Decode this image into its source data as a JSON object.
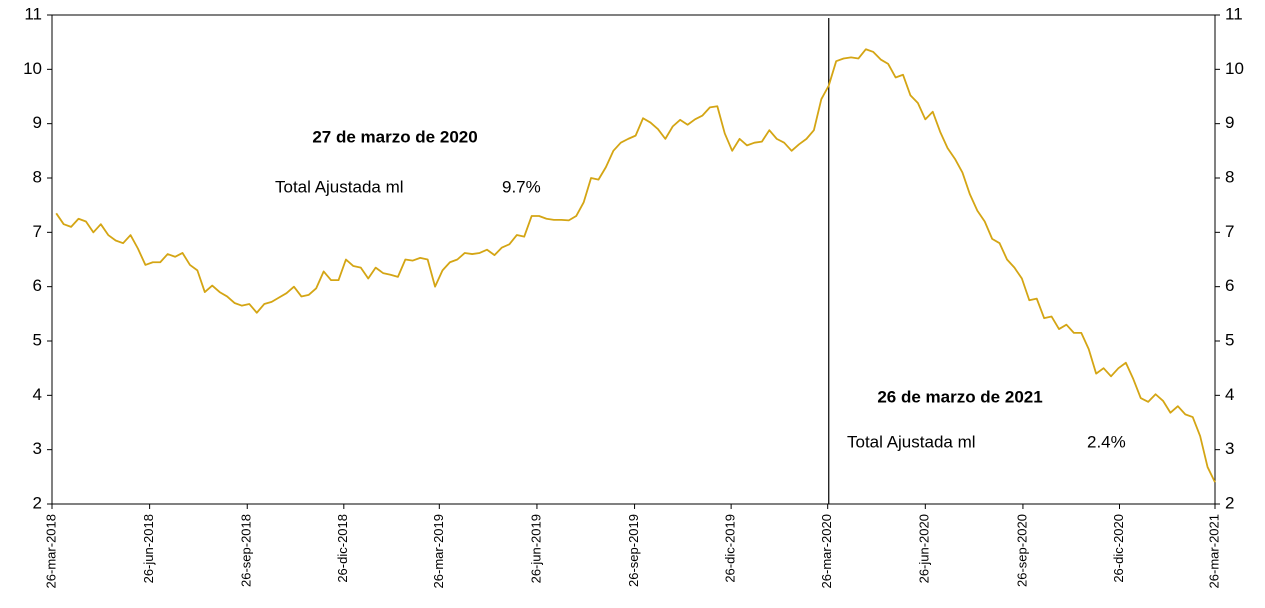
{
  "chart_data": {
    "type": "line",
    "x": [
      "2018-03-30",
      "2018-04-06",
      "2018-04-13",
      "2018-04-20",
      "2018-04-27",
      "2018-05-04",
      "2018-05-11",
      "2018-05-18",
      "2018-05-25",
      "2018-06-01",
      "2018-06-08",
      "2018-06-15",
      "2018-06-22",
      "2018-06-29",
      "2018-07-06",
      "2018-07-13",
      "2018-07-20",
      "2018-07-27",
      "2018-08-03",
      "2018-08-10",
      "2018-08-17",
      "2018-08-24",
      "2018-08-31",
      "2018-09-07",
      "2018-09-14",
      "2018-09-21",
      "2018-09-28",
      "2018-10-05",
      "2018-10-12",
      "2018-10-19",
      "2018-10-26",
      "2018-11-02",
      "2018-11-09",
      "2018-11-16",
      "2018-11-23",
      "2018-11-30",
      "2018-12-07",
      "2018-12-14",
      "2018-12-21",
      "2018-12-28",
      "2019-01-04",
      "2019-01-11",
      "2019-01-18",
      "2019-01-25",
      "2019-02-01",
      "2019-02-08",
      "2019-02-15",
      "2019-02-22",
      "2019-03-01",
      "2019-03-08",
      "2019-03-15",
      "2019-03-22",
      "2019-03-29",
      "2019-04-05",
      "2019-04-12",
      "2019-04-19",
      "2019-04-26",
      "2019-05-03",
      "2019-05-10",
      "2019-05-17",
      "2019-05-24",
      "2019-05-31",
      "2019-06-07",
      "2019-06-14",
      "2019-06-21",
      "2019-06-28",
      "2019-07-05",
      "2019-07-12",
      "2019-07-19",
      "2019-07-26",
      "2019-08-02",
      "2019-08-09",
      "2019-08-16",
      "2019-08-23",
      "2019-08-30",
      "2019-09-06",
      "2019-09-13",
      "2019-09-20",
      "2019-09-27",
      "2019-10-04",
      "2019-10-11",
      "2019-10-18",
      "2019-10-25",
      "2019-11-01",
      "2019-11-08",
      "2019-11-15",
      "2019-11-22",
      "2019-11-29",
      "2019-12-06",
      "2019-12-13",
      "2019-12-20",
      "2019-12-27",
      "2020-01-03",
      "2020-01-10",
      "2020-01-17",
      "2020-01-24",
      "2020-01-31",
      "2020-02-07",
      "2020-02-14",
      "2020-02-21",
      "2020-02-28",
      "2020-03-06",
      "2020-03-13",
      "2020-03-20",
      "2020-03-27",
      "2020-04-03",
      "2020-04-10",
      "2020-04-17",
      "2020-04-24",
      "2020-05-01",
      "2020-05-08",
      "2020-05-15",
      "2020-05-22",
      "2020-05-29",
      "2020-06-05",
      "2020-06-12",
      "2020-06-19",
      "2020-06-26",
      "2020-07-03",
      "2020-07-10",
      "2020-07-17",
      "2020-07-24",
      "2020-07-31",
      "2020-08-07",
      "2020-08-14",
      "2020-08-21",
      "2020-08-28",
      "2020-09-04",
      "2020-09-11",
      "2020-09-18",
      "2020-09-25",
      "2020-10-02",
      "2020-10-09",
      "2020-10-16",
      "2020-10-23",
      "2020-10-30",
      "2020-11-06",
      "2020-11-13",
      "2020-11-20",
      "2020-11-27",
      "2020-12-04",
      "2020-12-11",
      "2020-12-18",
      "2020-12-25",
      "2021-01-01",
      "2021-01-08",
      "2021-01-15",
      "2021-01-22",
      "2021-01-29",
      "2021-02-05",
      "2021-02-12",
      "2021-02-19",
      "2021-02-26",
      "2021-03-05",
      "2021-03-12",
      "2021-03-19",
      "2021-03-26"
    ],
    "series": [
      {
        "name": "Total Ajustada ml",
        "color": "#d4a514",
        "values": [
          7.35,
          7.15,
          7.1,
          7.25,
          7.2,
          7.0,
          7.15,
          6.95,
          6.85,
          6.8,
          6.95,
          6.7,
          6.4,
          6.45,
          6.45,
          6.6,
          6.55,
          6.62,
          6.4,
          6.3,
          5.9,
          6.02,
          5.9,
          5.82,
          5.7,
          5.65,
          5.68,
          5.52,
          5.68,
          5.72,
          5.8,
          5.88,
          6.0,
          5.82,
          5.85,
          5.97,
          6.28,
          6.12,
          6.12,
          6.5,
          6.38,
          6.35,
          6.15,
          6.35,
          6.25,
          6.22,
          6.18,
          6.5,
          6.48,
          6.53,
          6.5,
          6.0,
          6.3,
          6.45,
          6.5,
          6.62,
          6.6,
          6.62,
          6.68,
          6.58,
          6.72,
          6.78,
          6.95,
          6.92,
          7.3,
          7.3,
          7.25,
          7.23,
          7.23,
          7.22,
          7.3,
          7.55,
          8.0,
          7.97,
          8.2,
          8.5,
          8.65,
          8.72,
          8.78,
          9.1,
          9.02,
          8.9,
          8.72,
          8.95,
          9.07,
          8.98,
          9.08,
          9.15,
          9.3,
          9.32,
          8.82,
          8.5,
          8.72,
          8.6,
          8.65,
          8.67,
          8.88,
          8.72,
          8.65,
          8.5,
          8.62,
          8.72,
          8.88,
          9.45,
          9.7,
          10.15,
          10.2,
          10.22,
          10.2,
          10.37,
          10.32,
          10.18,
          10.1,
          9.85,
          9.9,
          9.52,
          9.38,
          9.08,
          9.22,
          8.85,
          8.55,
          8.35,
          8.1,
          7.7,
          7.4,
          7.2,
          6.88,
          6.8,
          6.5,
          6.35,
          6.15,
          5.75,
          5.78,
          5.42,
          5.45,
          5.22,
          5.3,
          5.15,
          5.15,
          4.85,
          4.4,
          4.5,
          4.35,
          4.5,
          4.6,
          4.3,
          3.95,
          3.88,
          4.02,
          3.9,
          3.68,
          3.8,
          3.65,
          3.6,
          3.25,
          2.68,
          2.4
        ]
      }
    ],
    "xlim": [
      "2018-03-26",
      "2021-03-26"
    ],
    "xticks": [
      {
        "value": "2018-03-26",
        "label": "26-mar-2018"
      },
      {
        "value": "2018-06-26",
        "label": "26-jun-2018"
      },
      {
        "value": "2018-09-26",
        "label": "26-sep-2018"
      },
      {
        "value": "2018-12-26",
        "label": "26-dic-2018"
      },
      {
        "value": "2019-03-26",
        "label": "26-mar-2019"
      },
      {
        "value": "2019-06-26",
        "label": "26-jun-2019"
      },
      {
        "value": "2019-09-26",
        "label": "26-sep-2019"
      },
      {
        "value": "2019-12-26",
        "label": "26-dic-2019"
      },
      {
        "value": "2020-03-26",
        "label": "26-mar-2020"
      },
      {
        "value": "2020-06-26",
        "label": "26-jun-2020"
      },
      {
        "value": "2020-09-26",
        "label": "26-sep-2020"
      },
      {
        "value": "2020-12-26",
        "label": "26-dic-2020"
      },
      {
        "value": "2021-03-26",
        "label": "26-mar-2021"
      }
    ],
    "ylim": [
      2,
      11
    ],
    "yticks": [
      2,
      3,
      4,
      5,
      6,
      7,
      8,
      9,
      10,
      11
    ],
    "y2lim": [
      2,
      11
    ],
    "y2ticks": [
      2,
      3,
      4,
      5,
      6,
      7,
      8,
      9,
      10,
      11
    ],
    "vline": "2020-03-27",
    "annotations": [
      {
        "title": "27 de marzo de 2020",
        "label": "Total Ajustada ml",
        "value": 9.7,
        "value_label": "9.7%"
      },
      {
        "title": "26 de marzo de 2021",
        "label": "Total Ajustada ml",
        "value": 2.4,
        "value_label": "2.4%"
      }
    ]
  }
}
